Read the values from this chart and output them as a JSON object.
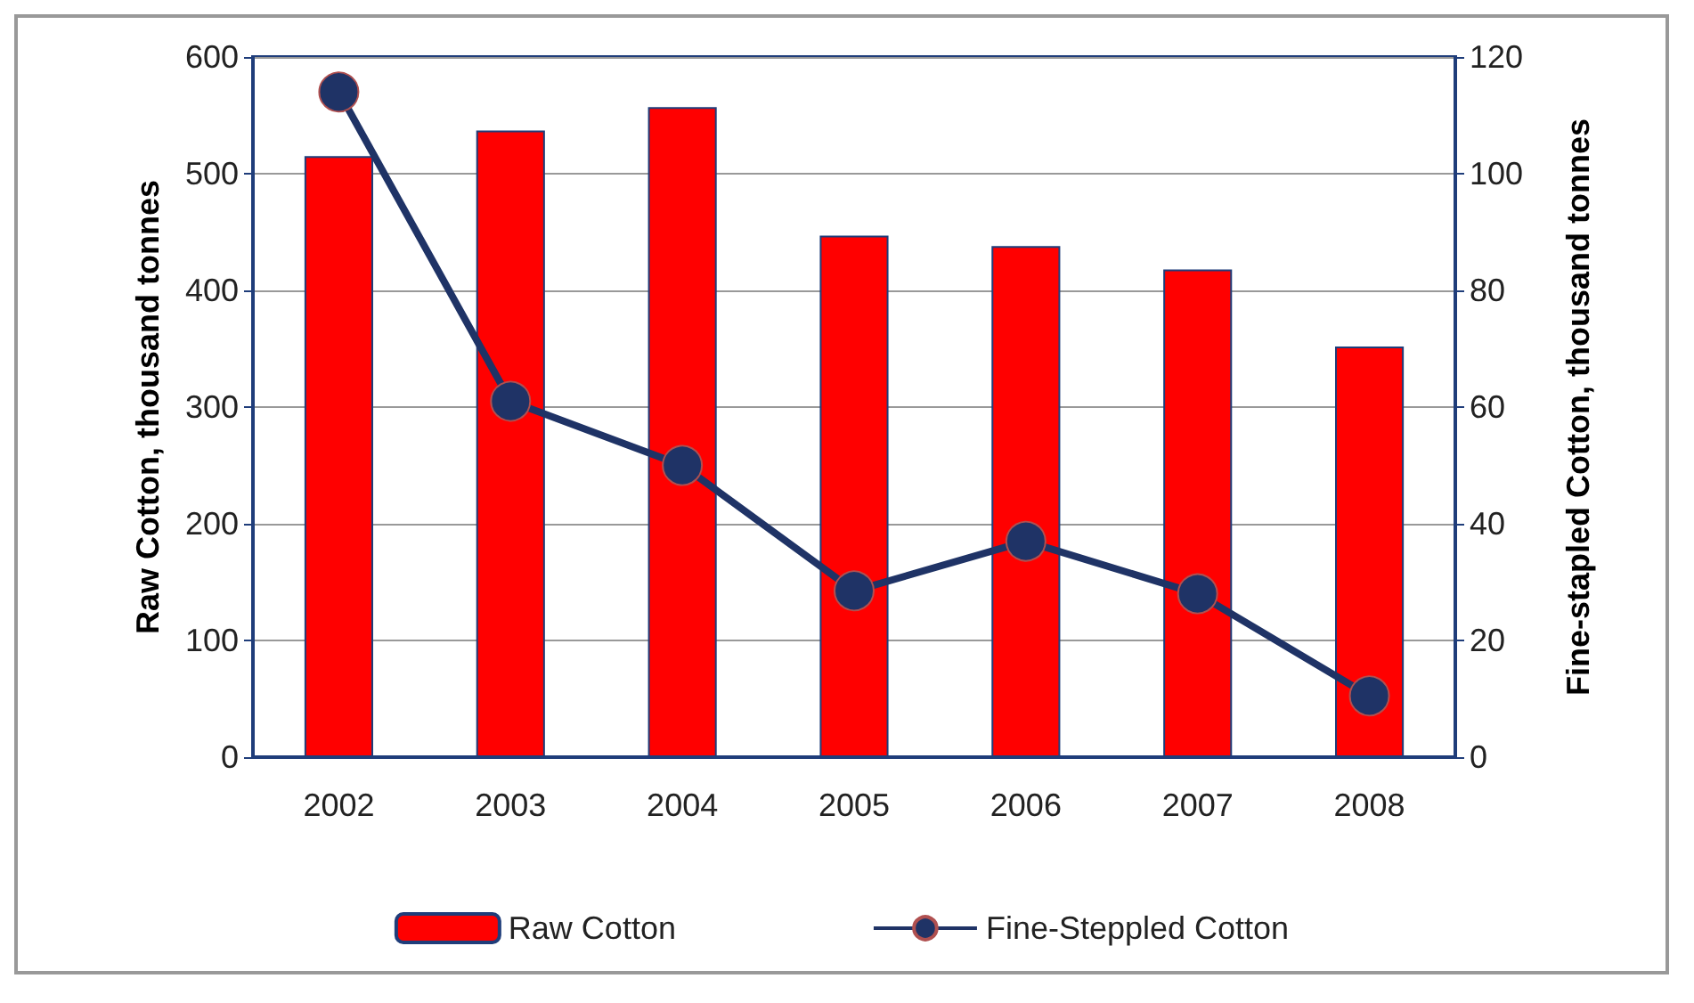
{
  "chart_data": {
    "type": "bar",
    "categories": [
      "2002",
      "2003",
      "2004",
      "2005",
      "2006",
      "2007",
      "2008"
    ],
    "series": [
      {
        "name": "Raw Cotton",
        "color": "#ff0000",
        "values": [
          515,
          537,
          557,
          447,
          438,
          418,
          352
        ]
      },
      {
        "name": "Fine-Steppled Cotton",
        "type": "line",
        "axis": "y2",
        "color": "#1f3366",
        "marker": "circle",
        "values": [
          114,
          61,
          50,
          28.5,
          37,
          28,
          10.5
        ]
      }
    ],
    "ylabel": "Raw Cotton, thousand tonnes",
    "y2label": "Fine-stapled Cotton, thousand tonnes",
    "ylim": [
      0,
      600
    ],
    "yticks": [
      0,
      100,
      200,
      300,
      400,
      500,
      600
    ],
    "y2lim": [
      0,
      120
    ],
    "y2ticks": [
      0,
      20,
      40,
      60,
      80,
      100,
      120
    ],
    "grid": "y",
    "legend": "bottom"
  }
}
